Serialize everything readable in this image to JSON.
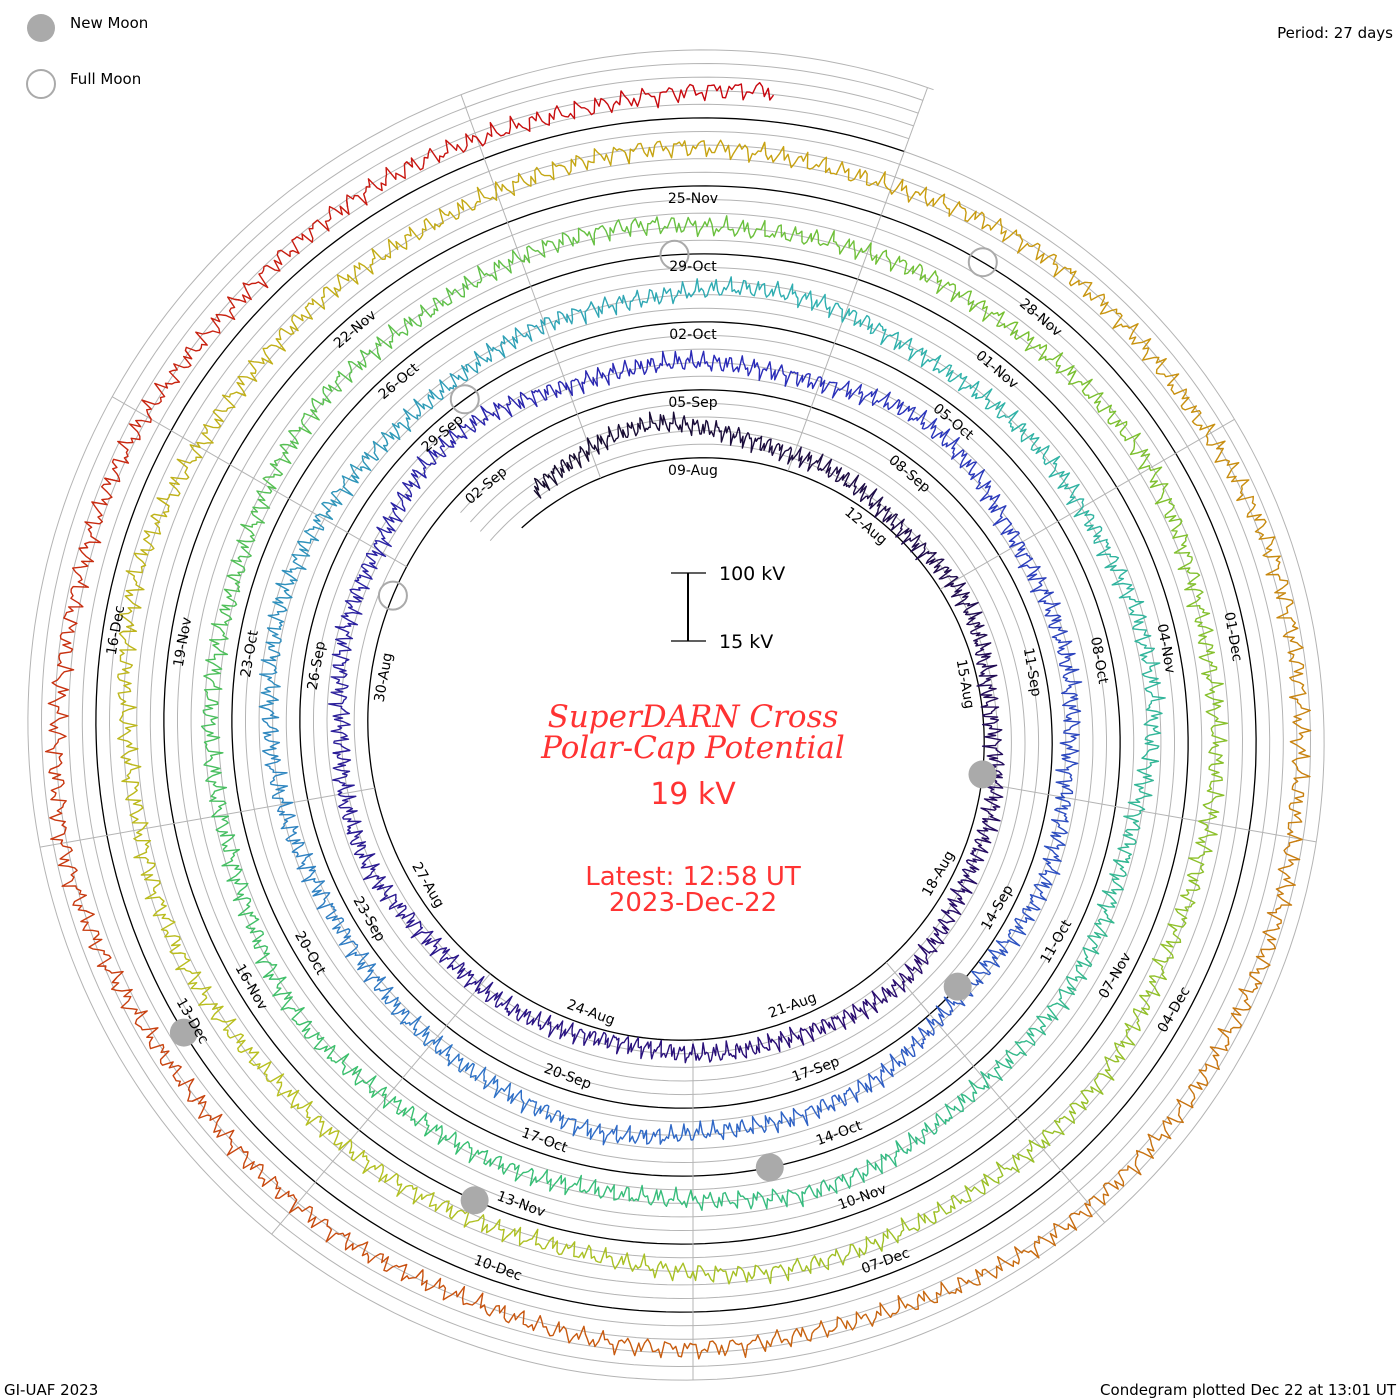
{
  "legend": {
    "new_moon": "New Moon",
    "full_moon": "Full Moon"
  },
  "period": "Period: 27 days",
  "footer": {
    "left": "GI-UAF 2023",
    "right": "Condegram plotted Dec 22 at 13:01 UT"
  },
  "scale": {
    "top": "100 kV",
    "bottom": "15 kV"
  },
  "title": {
    "line1": "SuperDARN Cross",
    "line2": "Polar-Cap Potential",
    "value": "19 kV",
    "latest": "Latest: 12:58 UT",
    "date": "2023-Dec-22"
  },
  "chart_data": {
    "type": "line",
    "subtype": "condegram-spiral",
    "title": "SuperDARN Cross Polar-Cap Potential",
    "units": "kV",
    "period_days": 27,
    "scale_range_kV": [
      15,
      100
    ],
    "start": "2023-08-06T12:00:00Z",
    "end": "2023-12-22T12:58:00Z",
    "reference_date": "2023-08-09T00:00:00Z",
    "first_day": "2023-08-06",
    "daily_values_kV": [
      45,
      55,
      60,
      50,
      35,
      30,
      28,
      32,
      30,
      28,
      30,
      32,
      40,
      45,
      42,
      35,
      30,
      28,
      32,
      35,
      40,
      50,
      55,
      50,
      54,
      60,
      70,
      65,
      55,
      50,
      45,
      50,
      60,
      55,
      45,
      40,
      42,
      38,
      35,
      30,
      28,
      40,
      50,
      45,
      55,
      48,
      40,
      35,
      38,
      45,
      55,
      60,
      50,
      45,
      40,
      48,
      52,
      58,
      55,
      48,
      45,
      50,
      60,
      55,
      45,
      40,
      38,
      42,
      50,
      55,
      48,
      40,
      45,
      50,
      55,
      45,
      42,
      40,
      38,
      45,
      50,
      48,
      52,
      55,
      50,
      48,
      52,
      58,
      60,
      55,
      50,
      45,
      48,
      52,
      55,
      60,
      58,
      50,
      40,
      35,
      42,
      48,
      55,
      60,
      65,
      70,
      62,
      55,
      50,
      58,
      62,
      60,
      55,
      60,
      65,
      62,
      70,
      75,
      68,
      72,
      78,
      70,
      65,
      60,
      58,
      55,
      50,
      48,
      52,
      60,
      68,
      65,
      55,
      50,
      45,
      42,
      40,
      45,
      50
    ],
    "latest_value_kV": 19,
    "date_labels": [
      {
        "text": "09-Aug"
      },
      {
        "text": "12-Aug"
      },
      {
        "text": "15-Aug"
      },
      {
        "text": "18-Aug"
      },
      {
        "text": "21-Aug"
      },
      {
        "text": "24-Aug"
      },
      {
        "text": "27-Aug"
      },
      {
        "text": "30-Aug"
      },
      {
        "text": "02-Sep"
      },
      {
        "text": "05-Sep"
      },
      {
        "text": "08-Sep"
      },
      {
        "text": "11-Sep"
      },
      {
        "text": "14-Sep"
      },
      {
        "text": "17-Sep"
      },
      {
        "text": "20-Sep"
      },
      {
        "text": "23-Sep"
      },
      {
        "text": "26-Sep"
      },
      {
        "text": "29-Sep"
      },
      {
        "text": "02-Oct"
      },
      {
        "text": "05-Oct"
      },
      {
        "text": "08-Oct"
      },
      {
        "text": "11-Oct"
      },
      {
        "text": "14-Oct"
      },
      {
        "text": "17-Oct"
      },
      {
        "text": "20-Oct"
      },
      {
        "text": "23-Oct"
      },
      {
        "text": "26-Oct"
      },
      {
        "text": "29-Oct"
      },
      {
        "text": "01-Nov"
      },
      {
        "text": "04-Nov"
      },
      {
        "text": "07-Nov"
      },
      {
        "text": "10-Nov"
      },
      {
        "text": "13-Nov"
      },
      {
        "text": "16-Nov"
      },
      {
        "text": "19-Nov"
      },
      {
        "text": "22-Nov"
      },
      {
        "text": "25-Nov"
      },
      {
        "text": "28-Nov"
      },
      {
        "text": "01-Dec"
      },
      {
        "text": "04-Dec"
      },
      {
        "text": "07-Dec"
      },
      {
        "text": "10-Dec"
      },
      {
        "text": "13-Dec"
      },
      {
        "text": "16-Dec"
      }
    ],
    "new_moons": [
      "2023-08-16T09:00:00Z",
      "2023-09-15T01:00:00Z",
      "2023-10-14T18:00:00Z",
      "2023-11-13T09:00:00Z",
      "2023-12-12T23:00:00Z"
    ],
    "full_moons": [
      "2023-08-31T02:00:00Z",
      "2023-09-29T10:00:00Z",
      "2023-10-28T20:00:00Z",
      "2023-11-27T09:00:00Z"
    ],
    "color_stops": [
      {
        "date": "2023-08-06",
        "color": "#150c2a"
      },
      {
        "date": "2023-08-20",
        "color": "#2a0c70"
      },
      {
        "date": "2023-09-05",
        "color": "#2a2ab8"
      },
      {
        "date": "2023-09-20",
        "color": "#2f6fc8"
      },
      {
        "date": "2023-10-03",
        "color": "#2fb0b0"
      },
      {
        "date": "2023-10-18",
        "color": "#38bf70"
      },
      {
        "date": "2023-11-01",
        "color": "#78c030"
      },
      {
        "date": "2023-11-15",
        "color": "#b8c020"
      },
      {
        "date": "2023-11-26",
        "color": "#c8a010"
      },
      {
        "date": "2023-12-08",
        "color": "#c86010"
      },
      {
        "date": "2023-12-22",
        "color": "#c80810"
      }
    ],
    "grid_color": "#b4b4b4",
    "moon_color": "#aaaaaa"
  }
}
